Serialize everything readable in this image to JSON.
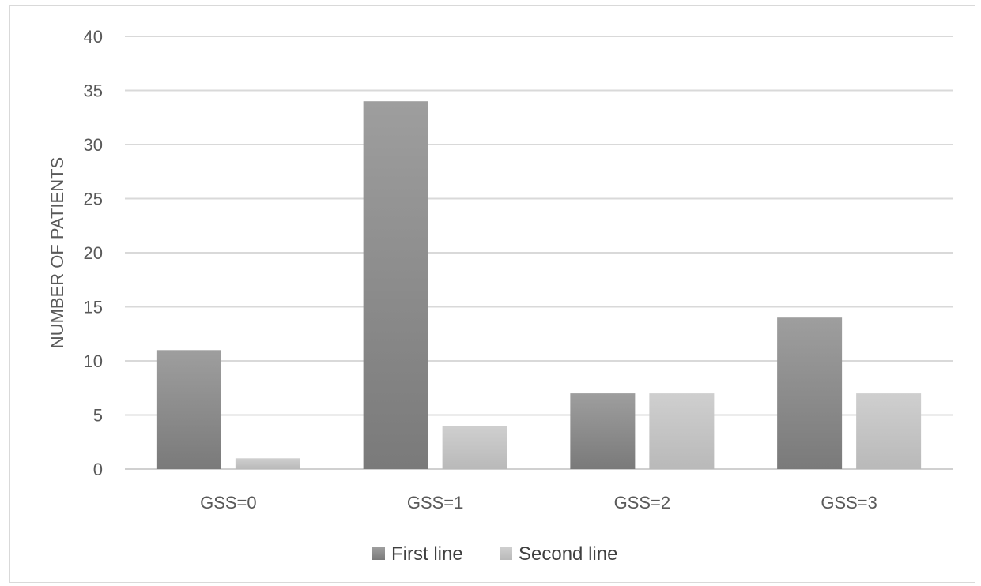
{
  "chart_data": {
    "type": "bar",
    "title": "",
    "xlabel": "",
    "ylabel": "NUMBER OF PATIENTS",
    "categories": [
      "GSS=0",
      "GSS=1",
      "GSS=2",
      "GSS=3"
    ],
    "series": [
      {
        "name": "First line",
        "values": [
          11,
          34,
          7,
          14
        ],
        "color": "#8c8c8c"
      },
      {
        "name": "Second line",
        "values": [
          1,
          4,
          7,
          7
        ],
        "color": "#c8c8c8"
      }
    ],
    "ylim": [
      0,
      40
    ],
    "yticks": [
      0,
      5,
      10,
      15,
      20,
      25,
      30,
      35,
      40
    ],
    "grid": true,
    "legend": "bottom"
  }
}
